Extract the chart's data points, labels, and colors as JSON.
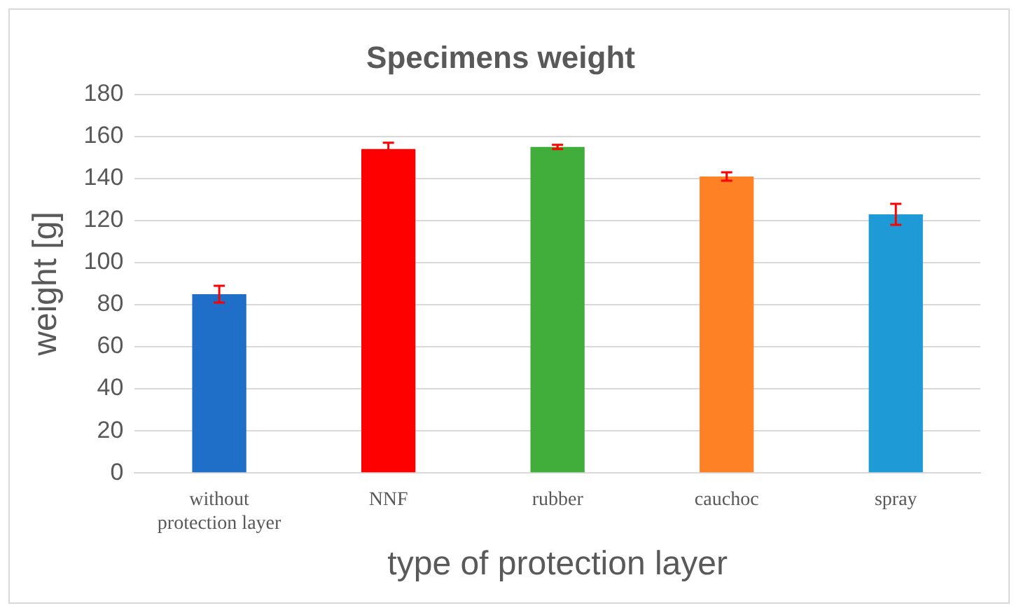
{
  "chart_data": {
    "type": "bar",
    "title": "Specimens weight",
    "xlabel": "type of protection layer",
    "ylabel": "weight [g]",
    "categories": [
      "without protection layer",
      "NNF",
      "rubber",
      "cauchoc",
      "spray"
    ],
    "values": [
      85,
      154,
      155,
      141,
      123
    ],
    "colors": [
      "#1f6fc8",
      "#ff0000",
      "#41ae3c",
      "#ff8126",
      "#1e9bd7"
    ],
    "errors": [
      4,
      3,
      1,
      2,
      5
    ],
    "ylim": [
      0,
      180
    ],
    "yticks": [
      0,
      20,
      40,
      60,
      80,
      100,
      120,
      140,
      160,
      180
    ],
    "grid": "y"
  }
}
